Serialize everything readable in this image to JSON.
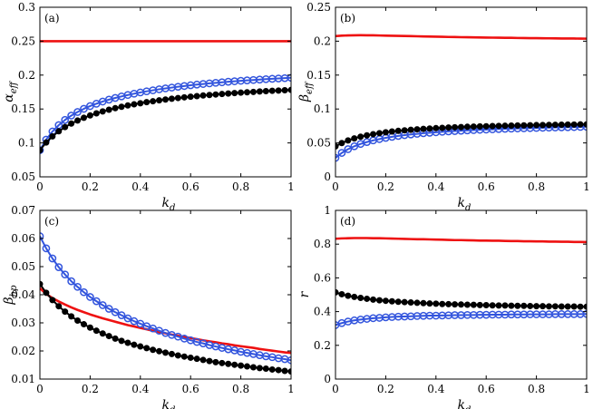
{
  "figure": {
    "background": "#ffffff"
  },
  "colors": {
    "red": "#ee1111",
    "blue": "#3355dd",
    "black": "#000000"
  },
  "chart_data": [
    {
      "id": "a",
      "type": "line",
      "panel_label": "(a)",
      "xlabel": {
        "main": "k",
        "sub": "d"
      },
      "ylabel": {
        "main": "α",
        "sub": "eff"
      },
      "xlim": [
        0,
        1
      ],
      "ylim": [
        0.05,
        0.3
      ],
      "xticks": [
        "0",
        "0.2",
        "0.4",
        "0.6",
        "0.8",
        "1"
      ],
      "yticks": [
        "0.05",
        "0.1",
        "0.15",
        "0.2",
        "0.25",
        "0.3"
      ],
      "x": [
        0,
        0.025,
        0.05,
        0.075,
        0.1,
        0.125,
        0.15,
        0.175,
        0.2,
        0.225,
        0.25,
        0.275,
        0.3,
        0.325,
        0.35,
        0.375,
        0.4,
        0.425,
        0.45,
        0.475,
        0.5,
        0.525,
        0.55,
        0.575,
        0.6,
        0.625,
        0.65,
        0.675,
        0.7,
        0.725,
        0.75,
        0.775,
        0.8,
        0.825,
        0.85,
        0.875,
        0.9,
        0.925,
        0.95,
        0.975,
        1
      ],
      "series": [
        {
          "name": "red",
          "color": "red",
          "marker": "none",
          "values": [
            0.25,
            0.25,
            0.25,
            0.25,
            0.25,
            0.25,
            0.25,
            0.25,
            0.25,
            0.25,
            0.25,
            0.25,
            0.25,
            0.25,
            0.25,
            0.25,
            0.25,
            0.25,
            0.25,
            0.25,
            0.25,
            0.25,
            0.25,
            0.25,
            0.25,
            0.25,
            0.25,
            0.25,
            0.25,
            0.25,
            0.25,
            0.25,
            0.25,
            0.25,
            0.25,
            0.25,
            0.25,
            0.25,
            0.25,
            0.25,
            0.25
          ]
        },
        {
          "name": "blue",
          "color": "blue",
          "marker": "open-circle",
          "values": [
            0.0893,
            0.1049,
            0.1168,
            0.1262,
            0.1339,
            0.1403,
            0.1456,
            0.1503,
            0.1543,
            0.1578,
            0.161,
            0.1638,
            0.1663,
            0.1686,
            0.1707,
            0.1726,
            0.1744,
            0.1761,
            0.1776,
            0.1791,
            0.1804,
            0.1816,
            0.1828,
            0.1839,
            0.185,
            0.186,
            0.1869,
            0.1878,
            0.1886,
            0.1894,
            0.1902,
            0.1909,
            0.1916,
            0.1922,
            0.1928,
            0.1934,
            0.194,
            0.1945,
            0.195,
            0.1955,
            0.196
          ]
        },
        {
          "name": "black",
          "color": "black",
          "marker": "filled-circle",
          "values": [
            0.0893,
            0.1006,
            0.1097,
            0.1171,
            0.1233,
            0.1285,
            0.133,
            0.137,
            0.1405,
            0.1436,
            0.1464,
            0.1489,
            0.1512,
            0.1533,
            0.1552,
            0.1569,
            0.1585,
            0.1601,
            0.1614,
            0.1628,
            0.164,
            0.1651,
            0.1662,
            0.1672,
            0.1681,
            0.169,
            0.1699,
            0.1707,
            0.1714,
            0.1721,
            0.1728,
            0.1735,
            0.1741,
            0.1747,
            0.1752,
            0.1758,
            0.1763,
            0.1768,
            0.1772,
            0.1777,
            0.1781
          ]
        }
      ]
    },
    {
      "id": "b",
      "type": "line",
      "panel_label": "(b)",
      "xlabel": {
        "main": "k",
        "sub": "d"
      },
      "ylabel": {
        "main": "β",
        "sub": "eff"
      },
      "xlim": [
        0,
        1
      ],
      "ylim": [
        0,
        0.25
      ],
      "xticks": [
        "0",
        "0.2",
        "0.4",
        "0.6",
        "0.8",
        "1"
      ],
      "yticks": [
        "0",
        "0.05",
        "0.1",
        "0.15",
        "0.2",
        "0.25"
      ],
      "x": [
        0,
        0.025,
        0.05,
        0.075,
        0.1,
        0.125,
        0.15,
        0.175,
        0.2,
        0.225,
        0.25,
        0.275,
        0.3,
        0.325,
        0.35,
        0.375,
        0.4,
        0.425,
        0.45,
        0.475,
        0.5,
        0.525,
        0.55,
        0.575,
        0.6,
        0.625,
        0.65,
        0.675,
        0.7,
        0.725,
        0.75,
        0.775,
        0.8,
        0.825,
        0.85,
        0.875,
        0.9,
        0.925,
        0.95,
        0.975,
        1
      ],
      "series": [
        {
          "name": "red",
          "color": "red",
          "marker": "none",
          "values": [
            0.2075,
            0.2081,
            0.2085,
            0.2087,
            0.2088,
            0.2087,
            0.2086,
            0.2084,
            0.2082,
            0.208,
            0.2078,
            0.2076,
            0.2074,
            0.2072,
            0.207,
            0.2068,
            0.2066,
            0.2064,
            0.2062,
            0.2061,
            0.2059,
            0.2058,
            0.2056,
            0.2055,
            0.2053,
            0.2052,
            0.2051,
            0.205,
            0.2049,
            0.2047,
            0.2046,
            0.2045,
            0.2044,
            0.2043,
            0.2042,
            0.2041,
            0.204,
            0.204,
            0.2039,
            0.2038,
            0.2037
          ]
        },
        {
          "name": "blue",
          "color": "blue",
          "marker": "open-circle",
          "values": [
            0.028,
            0.0353,
            0.0408,
            0.0451,
            0.0485,
            0.0513,
            0.0537,
            0.0557,
            0.0575,
            0.059,
            0.0603,
            0.0615,
            0.0625,
            0.0634,
            0.0643,
            0.065,
            0.0657,
            0.0664,
            0.067,
            0.0675,
            0.068,
            0.0685,
            0.0689,
            0.0694,
            0.0697,
            0.0701,
            0.0705,
            0.0708,
            0.0711,
            0.0714,
            0.0716,
            0.0719,
            0.0721,
            0.0724,
            0.0726,
            0.0728,
            0.073,
            0.0732,
            0.0734,
            0.0736,
            0.0738
          ]
        },
        {
          "name": "black",
          "color": "black",
          "marker": "filled-circle",
          "values": [
            0.045,
            0.0498,
            0.0536,
            0.0567,
            0.0592,
            0.0612,
            0.0629,
            0.0644,
            0.0657,
            0.0668,
            0.0678,
            0.0686,
            0.0694,
            0.0701,
            0.0707,
            0.0712,
            0.0718,
            0.0722,
            0.0727,
            0.0731,
            0.0734,
            0.0738,
            0.0741,
            0.0744,
            0.0746,
            0.0749,
            0.0751,
            0.0753,
            0.0755,
            0.0757,
            0.0759,
            0.0761,
            0.0763,
            0.0764,
            0.0766,
            0.0767,
            0.0769,
            0.077,
            0.0771,
            0.0773,
            0.0774
          ]
        }
      ]
    },
    {
      "id": "c",
      "type": "line",
      "panel_label": "(c)",
      "xlabel": {
        "main": "k",
        "sub": "d"
      },
      "ylabel": {
        "main": "β",
        "sub": "hp"
      },
      "xlim": [
        0,
        1
      ],
      "ylim": [
        0.01,
        0.07
      ],
      "xticks": [
        "0",
        "0.2",
        "0.4",
        "0.6",
        "0.8",
        "1"
      ],
      "yticks": [
        "0.01",
        "0.02",
        "0.03",
        "0.04",
        "0.05",
        "0.06",
        "0.07"
      ],
      "x": [
        0,
        0.025,
        0.05,
        0.075,
        0.1,
        0.125,
        0.15,
        0.175,
        0.2,
        0.225,
        0.25,
        0.275,
        0.3,
        0.325,
        0.35,
        0.375,
        0.4,
        0.425,
        0.45,
        0.475,
        0.5,
        0.525,
        0.55,
        0.575,
        0.6,
        0.625,
        0.65,
        0.675,
        0.7,
        0.725,
        0.75,
        0.775,
        0.8,
        0.825,
        0.85,
        0.875,
        0.9,
        0.925,
        0.95,
        0.975,
        1
      ],
      "series": [
        {
          "name": "red",
          "color": "red",
          "marker": "none",
          "values": [
            0.0423,
            0.0403,
            0.0388,
            0.0376,
            0.0365,
            0.0355,
            0.0346,
            0.0338,
            0.033,
            0.0323,
            0.0316,
            0.031,
            0.0304,
            0.0298,
            0.0292,
            0.0287,
            0.0282,
            0.0277,
            0.0272,
            0.0267,
            0.0263,
            0.0258,
            0.0254,
            0.025,
            0.0246,
            0.0242,
            0.0238,
            0.0234,
            0.0231,
            0.0227,
            0.0224,
            0.022,
            0.0217,
            0.0214,
            0.0211,
            0.0207,
            0.0204,
            0.0201,
            0.0198,
            0.0195,
            0.0193
          ]
        },
        {
          "name": "blue",
          "color": "blue",
          "marker": "open-circle",
          "values": [
            0.0608,
            0.0565,
            0.0529,
            0.0498,
            0.0472,
            0.0448,
            0.0428,
            0.0409,
            0.0392,
            0.0377,
            0.0363,
            0.035,
            0.0338,
            0.0327,
            0.0316,
            0.0306,
            0.0297,
            0.0288,
            0.028,
            0.0272,
            0.0264,
            0.0257,
            0.0251,
            0.0244,
            0.0238,
            0.0232,
            0.0227,
            0.0221,
            0.0216,
            0.0211,
            0.0206,
            0.0202,
            0.0197,
            0.0193,
            0.0189,
            0.0185,
            0.0181,
            0.0178,
            0.0174,
            0.0171,
            0.0167
          ]
        },
        {
          "name": "black",
          "color": "black",
          "marker": "filled-circle",
          "values": [
            0.0438,
            0.0407,
            0.0381,
            0.0359,
            0.034,
            0.0323,
            0.0308,
            0.0295,
            0.0283,
            0.0272,
            0.0262,
            0.0253,
            0.0244,
            0.0236,
            0.0229,
            0.0222,
            0.0216,
            0.021,
            0.0204,
            0.0199,
            0.0194,
            0.0189,
            0.0184,
            0.018,
            0.0176,
            0.0172,
            0.0168,
            0.0164,
            0.016,
            0.0157,
            0.0154,
            0.0151,
            0.0148,
            0.0145,
            0.0142,
            0.0139,
            0.0137,
            0.0134,
            0.0132,
            0.0129,
            0.0127
          ]
        }
      ]
    },
    {
      "id": "d",
      "type": "line",
      "panel_label": "(d)",
      "xlabel": {
        "main": "k",
        "sub": "d"
      },
      "ylabel": {
        "main": "r",
        "sub": ""
      },
      "xlim": [
        0,
        1
      ],
      "ylim": [
        0,
        1
      ],
      "xticks": [
        "0",
        "0.2",
        "0.4",
        "0.6",
        "0.8",
        "1"
      ],
      "yticks": [
        "0",
        "0.2",
        "0.4",
        "0.6",
        "0.8",
        "1"
      ],
      "x": [
        0,
        0.025,
        0.05,
        0.075,
        0.1,
        0.125,
        0.15,
        0.175,
        0.2,
        0.225,
        0.25,
        0.275,
        0.3,
        0.325,
        0.35,
        0.375,
        0.4,
        0.425,
        0.45,
        0.475,
        0.5,
        0.525,
        0.55,
        0.575,
        0.6,
        0.625,
        0.65,
        0.675,
        0.7,
        0.725,
        0.75,
        0.775,
        0.8,
        0.825,
        0.85,
        0.875,
        0.9,
        0.925,
        0.95,
        0.975,
        1
      ],
      "series": [
        {
          "name": "red",
          "color": "red",
          "marker": "none",
          "values": [
            0.832,
            0.834,
            0.835,
            0.836,
            0.836,
            0.836,
            0.835,
            0.835,
            0.834,
            0.833,
            0.832,
            0.831,
            0.83,
            0.829,
            0.829,
            0.828,
            0.827,
            0.826,
            0.825,
            0.824,
            0.824,
            0.823,
            0.822,
            0.821,
            0.821,
            0.82,
            0.82,
            0.819,
            0.818,
            0.818,
            0.817,
            0.817,
            0.816,
            0.816,
            0.815,
            0.815,
            0.814,
            0.814,
            0.813,
            0.813,
            0.812
          ]
        },
        {
          "name": "blue",
          "color": "blue",
          "marker": "open-circle",
          "values": [
            0.32,
            0.332,
            0.341,
            0.348,
            0.353,
            0.357,
            0.361,
            0.363,
            0.366,
            0.368,
            0.37,
            0.371,
            0.372,
            0.374,
            0.375,
            0.376,
            0.376,
            0.377,
            0.378,
            0.379,
            0.379,
            0.38,
            0.38,
            0.381,
            0.381,
            0.382,
            0.382,
            0.382,
            0.383,
            0.383,
            0.383,
            0.384,
            0.384,
            0.384,
            0.384,
            0.385,
            0.385,
            0.385,
            0.385,
            0.385,
            0.386
          ]
        },
        {
          "name": "black",
          "color": "black",
          "marker": "filled-circle",
          "values": [
            0.514,
            0.503,
            0.494,
            0.487,
            0.481,
            0.476,
            0.471,
            0.467,
            0.464,
            0.461,
            0.458,
            0.456,
            0.454,
            0.452,
            0.45,
            0.448,
            0.447,
            0.445,
            0.444,
            0.443,
            0.442,
            0.441,
            0.44,
            0.439,
            0.438,
            0.437,
            0.436,
            0.436,
            0.435,
            0.434,
            0.434,
            0.433,
            0.432,
            0.432,
            0.431,
            0.431,
            0.43,
            0.43,
            0.43,
            0.429,
            0.429
          ]
        }
      ]
    }
  ]
}
